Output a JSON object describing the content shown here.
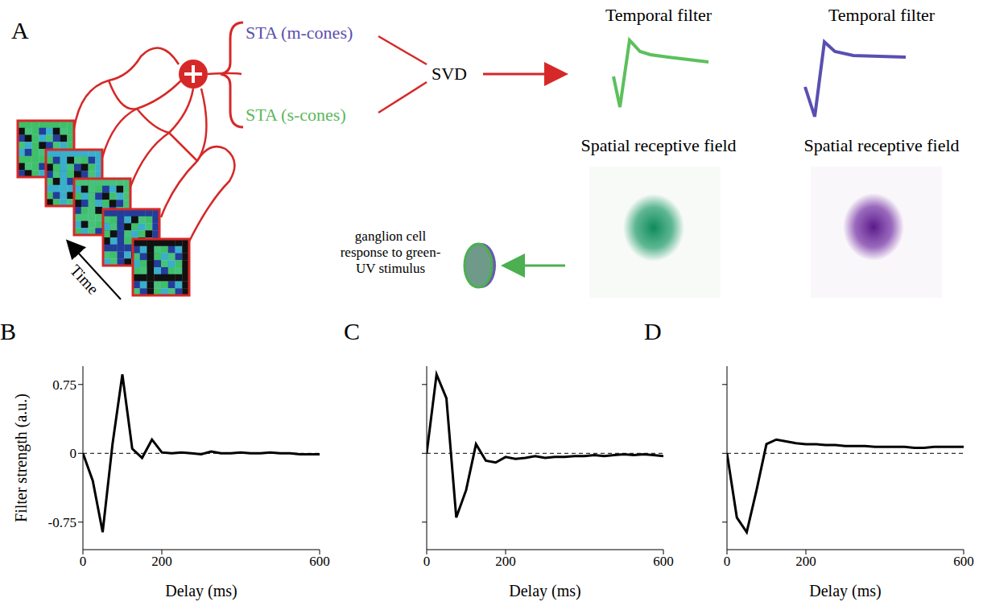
{
  "diagram": {
    "panel": "A",
    "time_label": "Time",
    "sta_m": "STA (m-cones)",
    "sta_s": "STA (s-cones)",
    "svd": "SVD",
    "temporal_filter_titles": [
      "Temporal filter",
      "Temporal filter"
    ],
    "spatial_rf_titles": [
      "Spatial receptive field",
      "Spatial receptive field"
    ],
    "response_label": "ganglion cell response to green-UV stimulus"
  },
  "chart_data": [
    {
      "panel": "B",
      "type": "line",
      "x": [
        0,
        25,
        50,
        75,
        100,
        125,
        150,
        175,
        200,
        225,
        250,
        275,
        300,
        325,
        350,
        375,
        400,
        425,
        450,
        475,
        500,
        525,
        550,
        575,
        600
      ],
      "values": [
        0,
        -0.3,
        -0.86,
        0.1,
        0.86,
        0.05,
        -0.05,
        0.15,
        0.01,
        0,
        0.01,
        0,
        -0.01,
        0.02,
        0,
        0,
        0.01,
        0,
        0,
        0.01,
        0,
        0,
        -0.01,
        -0.01,
        -0.01
      ],
      "color": "#000000",
      "xlabel": "Delay (ms)",
      "ylabel": "Filter strength (a.u.)",
      "xlim": [
        0,
        600
      ],
      "xticks": [
        0,
        200,
        600
      ],
      "ylim": [
        -1.05,
        0.95
      ],
      "yticks": [
        -0.75,
        0,
        0.75
      ],
      "reference_line": {
        "y": 0,
        "line_style": "dashed"
      }
    },
    {
      "panel": "C",
      "type": "line",
      "x": [
        0,
        25,
        50,
        75,
        100,
        125,
        150,
        175,
        200,
        225,
        250,
        275,
        300,
        325,
        350,
        375,
        400,
        425,
        450,
        475,
        500,
        525,
        550,
        575,
        600
      ],
      "values": [
        0,
        0.86,
        0.6,
        -0.7,
        -0.4,
        0.1,
        -0.08,
        -0.1,
        -0.04,
        -0.06,
        -0.05,
        -0.03,
        -0.05,
        -0.04,
        -0.04,
        -0.03,
        -0.03,
        -0.02,
        -0.03,
        -0.02,
        -0.01,
        -0.02,
        -0.01,
        -0.02,
        -0.03
      ],
      "color": "#000000",
      "xlabel": "Delay (ms)",
      "xlim": [
        0,
        600
      ],
      "xticks": [
        0,
        200,
        600
      ],
      "ylim": [
        -1.05,
        0.95
      ],
      "yticks": [
        -0.75,
        0,
        0.75
      ],
      "tick_labels": "x",
      "reference_line": {
        "y": 0,
        "line_style": "dashed"
      }
    },
    {
      "panel": "D",
      "type": "line",
      "x": [
        0,
        25,
        50,
        75,
        100,
        125,
        150,
        175,
        200,
        225,
        250,
        275,
        300,
        325,
        350,
        375,
        400,
        425,
        450,
        475,
        500,
        525,
        550,
        575,
        600
      ],
      "values": [
        0,
        -0.7,
        -0.86,
        -0.4,
        0.1,
        0.15,
        0.13,
        0.11,
        0.1,
        0.1,
        0.09,
        0.09,
        0.08,
        0.08,
        0.08,
        0.07,
        0.07,
        0.07,
        0.07,
        0.06,
        0.06,
        0.07,
        0.07,
        0.07,
        0.07
      ],
      "color": "#000000",
      "xlabel": "Delay (ms)",
      "xlim": [
        0,
        600
      ],
      "xticks": [
        0,
        200,
        600
      ],
      "ylim": [
        -1.05,
        0.95
      ],
      "yticks": [
        -0.75,
        0,
        0.75
      ],
      "tick_labels": "x",
      "reference_line": {
        "y": 0,
        "line_style": "dashed"
      }
    }
  ]
}
